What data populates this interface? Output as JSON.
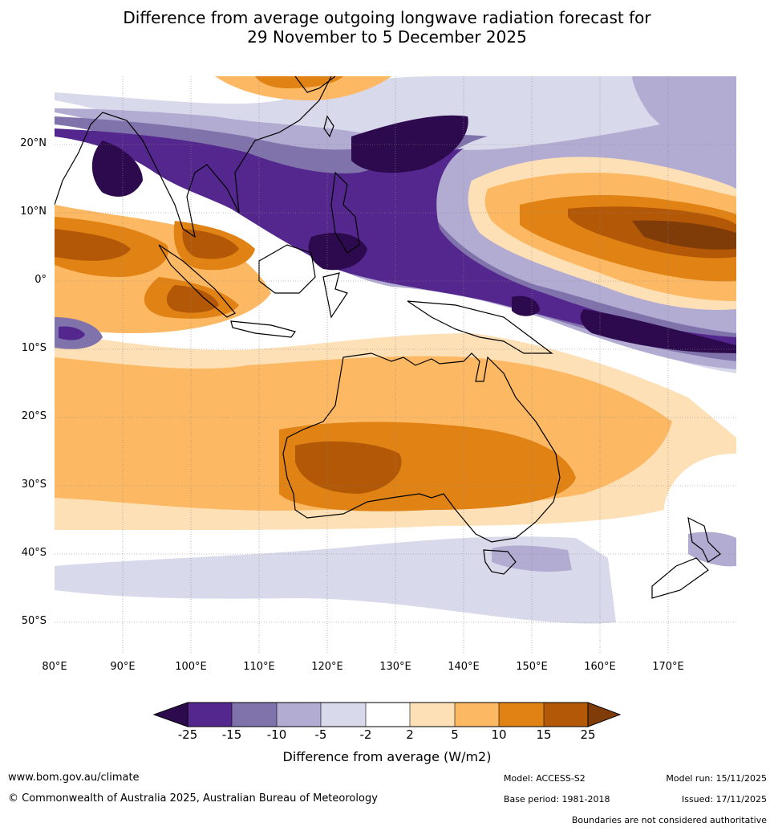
{
  "title_line1": "Difference from average outgoing longwave radiation forecast for",
  "title_line2": "29 November to 5 December 2025",
  "lat_labels": [
    "20°N",
    "10°N",
    "0°",
    "10°S",
    "20°S",
    "30°S",
    "40°S",
    "50°S"
  ],
  "lon_labels": [
    "80°E",
    "90°E",
    "100°E",
    "110°E",
    "120°E",
    "130°E",
    "140°E",
    "150°E",
    "160°E",
    "170°E"
  ],
  "legend": {
    "ticks": [
      "-25",
      "-15",
      "-10",
      "-5",
      "-2",
      "2",
      "5",
      "10",
      "15",
      "25"
    ],
    "colors": [
      "#2d0a4e",
      "#54278f",
      "#8073ac",
      "#b2abd2",
      "#d8daeb",
      "#ffffff",
      "#fee0b6",
      "#fdb863",
      "#e08214",
      "#b35806",
      "#7f3b08"
    ],
    "title": "Difference from average (W/m2)"
  },
  "footer": {
    "website": "www.bom.gov.au/climate",
    "copyright": "© Commonwealth of Australia 2025, Australian Bureau of Meteorology",
    "model": "Model: ACCESS-S2",
    "base_period": "Base period: 1981-2018",
    "model_run": "Model run: 15/11/2025",
    "issued": "Issued: 17/11/2025",
    "disclaimer": "Boundaries are not considered authoritative"
  }
}
